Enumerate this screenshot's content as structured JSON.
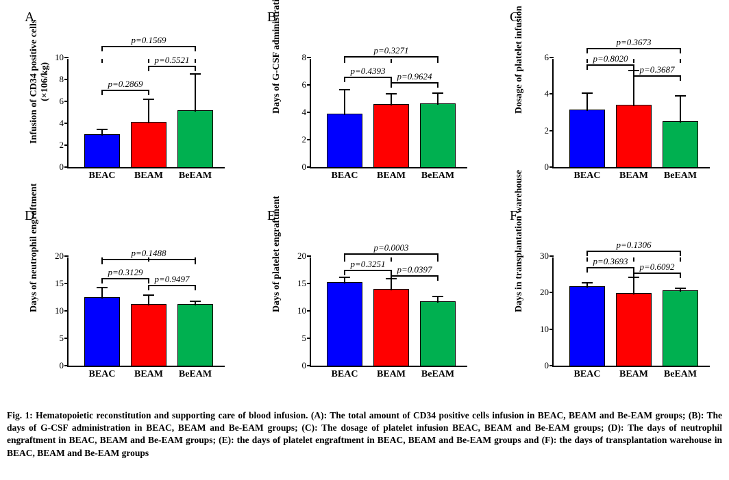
{
  "colors": {
    "BEAC": "#0000ff",
    "BEAM": "#ff0000",
    "BeEAM": "#00b050"
  },
  "panels": [
    {
      "letter": "A",
      "ylabel1": "Infusion of CD34 positive cells",
      "ylabel2": "(×106/kg)",
      "ylim": [
        0,
        10
      ],
      "ytick_step": 2,
      "categories": [
        "BEAC",
        "BEAM",
        "BeEAM"
      ],
      "values": [
        3.0,
        4.1,
        5.2
      ],
      "errors": [
        0.6,
        2.3,
        3.5
      ],
      "sig": [
        {
          "from": 0,
          "to": 1,
          "y": 7.2,
          "text": "p=0.2869"
        },
        {
          "from": 1,
          "to": 2,
          "y": 9.4,
          "text": "p=0.5521"
        },
        {
          "from": 0,
          "to": 2,
          "y": 11.2,
          "text": "p=0.1569"
        }
      ]
    },
    {
      "letter": "B",
      "ylabel1": "Days of G-CSF administration",
      "ylabel2": "",
      "ylim": [
        0,
        8
      ],
      "ytick_step": 2,
      "categories": [
        "BEAC",
        "BEAM",
        "BeEAM"
      ],
      "values": [
        3.9,
        4.6,
        4.65
      ],
      "errors": [
        1.9,
        0.9,
        0.9
      ],
      "sig": [
        {
          "from": 0,
          "to": 1,
          "y": 6.7,
          "text": "p=0.4393"
        },
        {
          "from": 1,
          "to": 2,
          "y": 6.3,
          "text": "p=0.9624"
        },
        {
          "from": 0,
          "to": 2,
          "y": 8.2,
          "text": "p=0.3271"
        }
      ]
    },
    {
      "letter": "C",
      "ylabel1": "Dosage of platelet infusion",
      "ylabel2": "",
      "ylim": [
        0,
        6
      ],
      "ytick_step": 2,
      "categories": [
        "BEAC",
        "BEAM",
        "BeEAM"
      ],
      "values": [
        3.15,
        3.4,
        2.5
      ],
      "errors": [
        1.0,
        2.0,
        1.5
      ],
      "sig": [
        {
          "from": 0,
          "to": 1,
          "y": 5.7,
          "text": "p=0.8020"
        },
        {
          "from": 1,
          "to": 2,
          "y": 5.1,
          "text": "p=0.3687"
        },
        {
          "from": 0,
          "to": 2,
          "y": 6.6,
          "text": "p=0.3673"
        }
      ]
    },
    {
      "letter": "D",
      "ylabel1": "Days of neutrophil engraftment",
      "ylabel2": "",
      "ylim": [
        0,
        20
      ],
      "ytick_step": 5,
      "categories": [
        "BEAC",
        "BEAM",
        "BeEAM"
      ],
      "values": [
        12.5,
        11.2,
        11.2
      ],
      "errors": [
        2.1,
        2.0,
        0.9
      ],
      "sig": [
        {
          "from": 0,
          "to": 1,
          "y": 16.3,
          "text": "p=0.3129"
        },
        {
          "from": 1,
          "to": 2,
          "y": 15.0,
          "text": "p=0.9497"
        },
        {
          "from": 0,
          "to": 2,
          "y": 19.7,
          "text": "p=0.1488"
        }
      ]
    },
    {
      "letter": "E",
      "ylabel1": "Days of platelet engraftment",
      "ylabel2": "",
      "ylim": [
        0,
        20
      ],
      "ytick_step": 5,
      "categories": [
        "BEAC",
        "BEAM",
        "BeEAM"
      ],
      "values": [
        15.2,
        14.0,
        11.8
      ],
      "errors": [
        1.3,
        2.3,
        1.2
      ],
      "sig": [
        {
          "from": 0,
          "to": 1,
          "y": 17.8,
          "text": "p=0.3251"
        },
        {
          "from": 1,
          "to": 2,
          "y": 16.8,
          "text": "p=0.0397"
        },
        {
          "from": 0,
          "to": 2,
          "y": 20.8,
          "text": "p=0.0003"
        }
      ]
    },
    {
      "letter": "F",
      "ylabel1": "Days in transplantation warehouse",
      "ylabel2": "",
      "ylim": [
        0,
        30
      ],
      "ytick_step": 10,
      "categories": [
        "BEAC",
        "BEAM",
        "BeEAM"
      ],
      "values": [
        21.8,
        19.8,
        20.7
      ],
      "errors": [
        1.4,
        5.0,
        1.0
      ],
      "sig": [
        {
          "from": 0,
          "to": 1,
          "y": 27.3,
          "text": "p=0.3693"
        },
        {
          "from": 1,
          "to": 2,
          "y": 25.8,
          "text": "p=0.6092"
        },
        {
          "from": 0,
          "to": 2,
          "y": 31.8,
          "text": "p=0.1306"
        }
      ]
    }
  ],
  "caption": "Fig. 1: Hematopoietic reconstitution and supporting care of blood infusion. (A): The total amount of CD34 positive cells infusion in BEAC, BEAM and Be-EAM groups; (B): The days of G-CSF administration in BEAC, BEAM and Be-EAM groups; (C): The dosage of platelet infusion BEAC, BEAM and Be-EAM groups; (D): The days of neutrophil engraftment in BEAC, BEAM and Be-EAM groups; (E): the days of platelet engraftment in BEAC, BEAM and Be-EAM groups and (F): the days of transplantation warehouse in BEAC, BEAM and Be-EAM groups"
}
